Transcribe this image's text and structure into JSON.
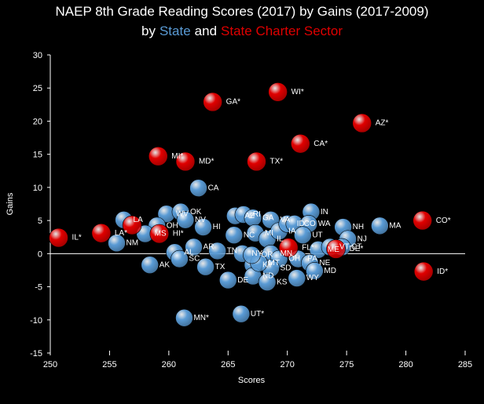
{
  "chart_data": {
    "type": "scatter",
    "title": "NAEP 8th Grade Reading Scores (2017) by Gains (2017-2009)",
    "subtitle_prefix": "by",
    "subtitle_joiner": "and",
    "x_label": "Scores",
    "y_label": "Gains",
    "xlim": [
      250,
      285
    ],
    "xticks": [
      250,
      255,
      260,
      265,
      270,
      275,
      280,
      285
    ],
    "ylim": [
      -15,
      30
    ],
    "yticks": [
      -15,
      -10,
      -5,
      0,
      5,
      10,
      15,
      20,
      25,
      30
    ],
    "grid": false,
    "series": [
      {
        "name": "State",
        "color": "#5a9bd5",
        "labels": [
          "LA",
          "WV",
          "CA",
          "OK",
          "OH",
          "MS",
          "NV",
          "HI",
          "AR",
          "AL",
          "AK",
          "NM",
          "SC",
          "TN",
          "DE",
          "NY",
          "KY",
          "ND",
          "MN*",
          "UT*",
          "AZ",
          "RI",
          "GA",
          "VA",
          "NC",
          "MI",
          "IL",
          "IA",
          "ID",
          "CO",
          "IN",
          "WA",
          "UT",
          "NH",
          "NJ",
          "MA",
          "ME",
          "VT",
          "CT",
          "PA",
          "NE",
          "MN",
          "OH",
          "SD",
          "MD",
          "WY",
          "MT",
          "KS",
          "OR",
          "TX"
        ],
        "x": [
          256.2,
          259.8,
          262.5,
          261.0,
          259.0,
          258.0,
          261.4,
          262.9,
          262.1,
          260.5,
          258.4,
          255.6,
          260.9,
          264.1,
          265.0,
          266.2,
          267.1,
          267.1,
          261.3,
          266.1,
          265.6,
          266.3,
          267.1,
          268.6,
          265.5,
          267.3,
          268.3,
          269.3,
          270.0,
          270.6,
          272.0,
          271.8,
          271.3,
          274.7,
          275.1,
          277.8,
          272.6,
          273.6,
          274.6,
          270.9,
          271.9,
          268.6,
          269.3,
          268.6,
          272.3,
          270.8,
          267.6,
          268.3,
          267.0,
          263.1
        ],
        "values": [
          5.1,
          6.0,
          9.9,
          6.3,
          4.2,
          3.0,
          5.1,
          4.0,
          1.0,
          0.2,
          -1.7,
          1.6,
          -0.8,
          0.4,
          -4.0,
          0.0,
          -1.7,
          -3.4,
          -9.7,
          -9.1,
          5.7,
          5.9,
          5.4,
          5.1,
          2.8,
          3.1,
          2.2,
          3.4,
          4.5,
          4.5,
          6.3,
          4.5,
          2.8,
          4.0,
          2.2,
          4.2,
          0.6,
          1.0,
          1.0,
          -0.8,
          -1.4,
          0.0,
          -0.8,
          -2.2,
          -2.6,
          -3.7,
          -1.4,
          -4.3,
          -0.2,
          -2.0
        ]
      },
      {
        "name": "State Charter Sector",
        "color": "#e00000",
        "labels": [
          "IL*",
          "LA*",
          null,
          "HI*",
          "GA*",
          "WI*",
          "AZ*",
          "CA*",
          "MI*",
          "MD*",
          "TX*",
          "FL*",
          "DE*",
          "CO*",
          "ID*"
        ],
        "x": [
          250.7,
          254.3,
          256.9,
          259.2,
          263.7,
          269.2,
          276.3,
          271.1,
          259.1,
          261.4,
          267.4,
          270.1,
          274.1,
          281.4,
          281.5
        ],
        "values": [
          2.4,
          3.1,
          4.3,
          3.0,
          22.9,
          24.4,
          19.7,
          16.6,
          14.7,
          13.9,
          13.9,
          0.9,
          0.7,
          5.0,
          -2.7
        ]
      }
    ]
  }
}
